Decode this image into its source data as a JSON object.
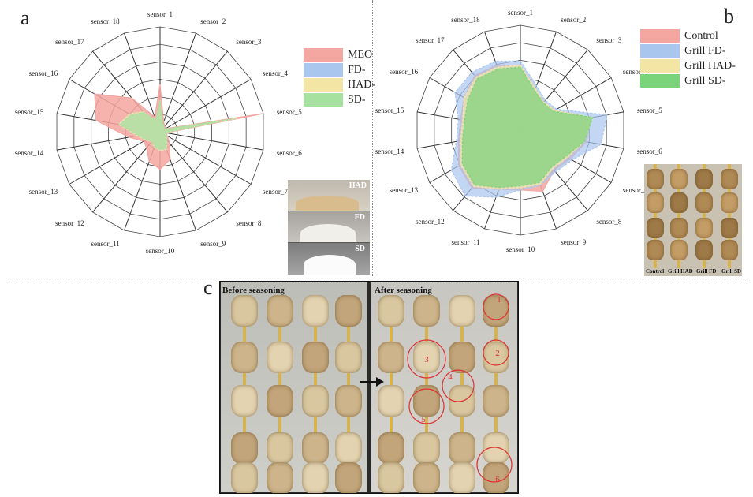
{
  "panel_letters": {
    "a": "a",
    "b": "b",
    "c": "c"
  },
  "chart_data": [
    {
      "type": "radar",
      "panel": "a",
      "axes": [
        "sensor_1",
        "sensor_2",
        "sensor_3",
        "sensor_4",
        "sensor_5",
        "sensor_6",
        "sensor_7",
        "sensor_8",
        "sensor_9",
        "sensor_10",
        "sensor_11",
        "sensor_12",
        "sensor_13",
        "sensor_14",
        "sensor_15",
        "sensor_16",
        "sensor_17",
        "sensor_18"
      ],
      "rlim": [
        0,
        1
      ],
      "rings": 6,
      "legend_position": "right",
      "series": [
        {
          "name": "MEO",
          "color": "#f4a6a0",
          "values": [
            0.45,
            0.1,
            0.07,
            0.06,
            1.0,
            0.06,
            0.08,
            0.14,
            0.28,
            0.36,
            0.3,
            0.2,
            0.18,
            0.3,
            0.62,
            0.72,
            0.42,
            0.15
          ]
        },
        {
          "name": "FD-",
          "color": "#a9c6ef",
          "values": [
            0.3,
            0.08,
            0.06,
            0.05,
            0.75,
            0.05,
            0.07,
            0.1,
            0.18,
            0.18,
            0.16,
            0.12,
            0.16,
            0.22,
            0.4,
            0.34,
            0.25,
            0.12
          ]
        },
        {
          "name": "HAD-",
          "color": "#f3e6a4",
          "values": [
            0.3,
            0.08,
            0.06,
            0.05,
            0.75,
            0.05,
            0.07,
            0.1,
            0.18,
            0.18,
            0.16,
            0.12,
            0.16,
            0.22,
            0.4,
            0.34,
            0.25,
            0.12
          ]
        },
        {
          "name": "SD-",
          "color": "#a6e1a0",
          "values": [
            0.3,
            0.08,
            0.06,
            0.05,
            0.72,
            0.05,
            0.07,
            0.1,
            0.17,
            0.17,
            0.15,
            0.12,
            0.15,
            0.21,
            0.39,
            0.32,
            0.24,
            0.12
          ]
        }
      ]
    },
    {
      "type": "radar",
      "panel": "b",
      "axes": [
        "sensor_1",
        "sensor_2",
        "sensor_3",
        "sensor_4",
        "sensor_5",
        "sensor_6",
        "sensor_7",
        "sensor_8",
        "sensor_9",
        "sensor_10",
        "sensor_11",
        "sensor_12",
        "sensor_13",
        "sensor_14",
        "sensor_15",
        "sensor_16",
        "sensor_17",
        "sensor_18"
      ],
      "rlim": [
        0,
        1
      ],
      "rings": 6,
      "legend_position": "top-right",
      "series": [
        {
          "name": "Control",
          "color": "#f4a6a0",
          "values": [
            0.62,
            0.42,
            0.35,
            0.38,
            0.68,
            0.64,
            0.55,
            0.5,
            0.62,
            0.57,
            0.6,
            0.72,
            0.68,
            0.6,
            0.58,
            0.62,
            0.68,
            0.66
          ]
        },
        {
          "name": "Grill FD-",
          "color": "#a9c6ef",
          "values": [
            0.66,
            0.45,
            0.37,
            0.4,
            0.84,
            0.78,
            0.57,
            0.52,
            0.56,
            0.57,
            0.68,
            0.82,
            0.76,
            0.62,
            0.6,
            0.72,
            0.72,
            0.7
          ]
        },
        {
          "name": "Grill HAD-",
          "color": "#f3e6a4",
          "values": [
            0.62,
            0.42,
            0.35,
            0.38,
            0.7,
            0.62,
            0.52,
            0.48,
            0.55,
            0.55,
            0.6,
            0.7,
            0.66,
            0.58,
            0.56,
            0.62,
            0.66,
            0.64
          ]
        },
        {
          "name": "Grill SD-",
          "color": "#7cd47a",
          "values": [
            0.6,
            0.4,
            0.34,
            0.36,
            0.7,
            0.62,
            0.5,
            0.46,
            0.53,
            0.53,
            0.58,
            0.68,
            0.64,
            0.56,
            0.54,
            0.58,
            0.64,
            0.62
          ]
        }
      ]
    }
  ],
  "inset_a": {
    "labels": [
      "HAD",
      "FD",
      "SD"
    ]
  },
  "inset_b": {
    "labels": [
      "Control",
      "Grill HAD",
      "Grill FD",
      "Grill SD"
    ]
  },
  "photo_c": {
    "left_title": "Before seasoning",
    "right_title": "After seasoning",
    "markers": [
      "1",
      "2",
      "3",
      "4",
      "5",
      "6"
    ]
  }
}
